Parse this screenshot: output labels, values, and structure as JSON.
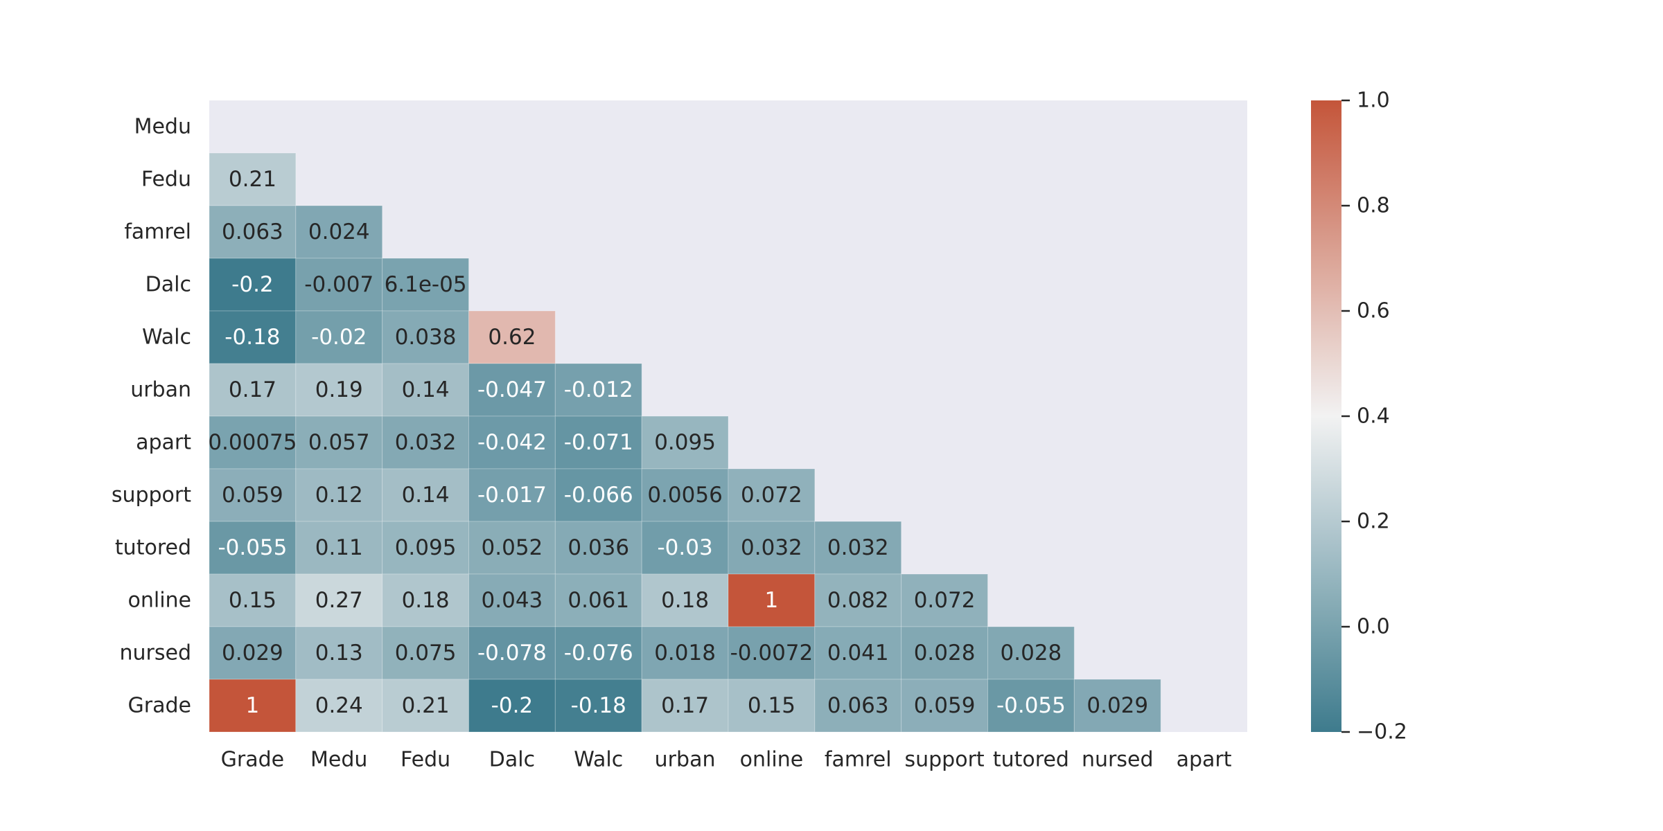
{
  "chart_data": {
    "type": "heatmap",
    "title": "",
    "xlabel": "",
    "ylabel": "",
    "x_categories": [
      "Grade",
      "Medu",
      "Fedu",
      "Dalc",
      "Walc",
      "urban",
      "online",
      "famrel",
      "support",
      "tutored",
      "nursed",
      "apart"
    ],
    "y_categories": [
      "Medu",
      "Fedu",
      "famrel",
      "Dalc",
      "Walc",
      "urban",
      "apart",
      "support",
      "tutored",
      "online",
      "nursed",
      "Grade"
    ],
    "values": [
      [],
      [
        0.21
      ],
      [
        0.063,
        0.024
      ],
      [
        -0.2,
        -0.007,
        6.1e-05
      ],
      [
        -0.18,
        -0.02,
        0.038,
        0.62
      ],
      [
        0.17,
        0.19,
        0.14,
        -0.047,
        -0.012
      ],
      [
        0.00075,
        0.057,
        0.032,
        -0.042,
        -0.071,
        0.095
      ],
      [
        0.059,
        0.12,
        0.14,
        -0.017,
        -0.066,
        0.0056,
        0.072
      ],
      [
        -0.055,
        0.11,
        0.095,
        0.052,
        0.036,
        -0.03,
        0.032,
        0.032
      ],
      [
        0.15,
        0.27,
        0.18,
        0.043,
        0.061,
        0.18,
        1,
        0.082,
        0.072
      ],
      [
        0.029,
        0.13,
        0.075,
        -0.078,
        -0.076,
        0.018,
        -0.0072,
        0.041,
        0.028,
        0.028
      ],
      [
        1,
        0.24,
        0.21,
        -0.2,
        -0.18,
        0.17,
        0.15,
        0.063,
        0.059,
        -0.055,
        0.029
      ]
    ],
    "value_labels": [
      [],
      [
        "0.21"
      ],
      [
        "0.063",
        "0.024"
      ],
      [
        "-0.2",
        "-0.007",
        "6.1e-05"
      ],
      [
        "-0.18",
        "-0.02",
        "0.038",
        "0.62"
      ],
      [
        "0.17",
        "0.19",
        "0.14",
        "-0.047",
        "-0.012"
      ],
      [
        "0.00075",
        "0.057",
        "0.032",
        "-0.042",
        "-0.071",
        "0.095"
      ],
      [
        "0.059",
        "0.12",
        "0.14",
        "-0.017",
        "-0.066",
        "0.0056",
        "0.072"
      ],
      [
        "-0.055",
        "0.11",
        "0.095",
        "0.052",
        "0.036",
        "-0.03",
        "0.032",
        "0.032"
      ],
      [
        "0.15",
        "0.27",
        "0.18",
        "0.043",
        "0.061",
        "0.18",
        "1",
        "0.082",
        "0.072"
      ],
      [
        "0.029",
        "0.13",
        "0.075",
        "-0.078",
        "-0.076",
        "0.018",
        "-0.0072",
        "0.041",
        "0.028",
        "0.028"
      ],
      [
        "1",
        "0.24",
        "0.21",
        "-0.2",
        "-0.18",
        "0.17",
        "0.15",
        "0.063",
        "0.059",
        "-0.055",
        "0.029"
      ]
    ],
    "mask": "upper-triangle",
    "colorbar": {
      "range": [
        -0.2,
        1.0
      ],
      "ticks": [
        -0.2,
        0.0,
        0.2,
        0.4,
        0.6,
        0.8,
        1.0
      ],
      "tick_labels": [
        "−0.2",
        "0.0",
        "0.2",
        "0.4",
        "0.6",
        "0.8",
        "1.0"
      ],
      "position": "right"
    },
    "colors": {
      "low": "#3e7b8d",
      "mid": "#f2f2f2",
      "high": "#c4553a",
      "masked_background": "#eaeaf2",
      "text_dark": "#262626",
      "text_light": "#ffffff"
    }
  }
}
